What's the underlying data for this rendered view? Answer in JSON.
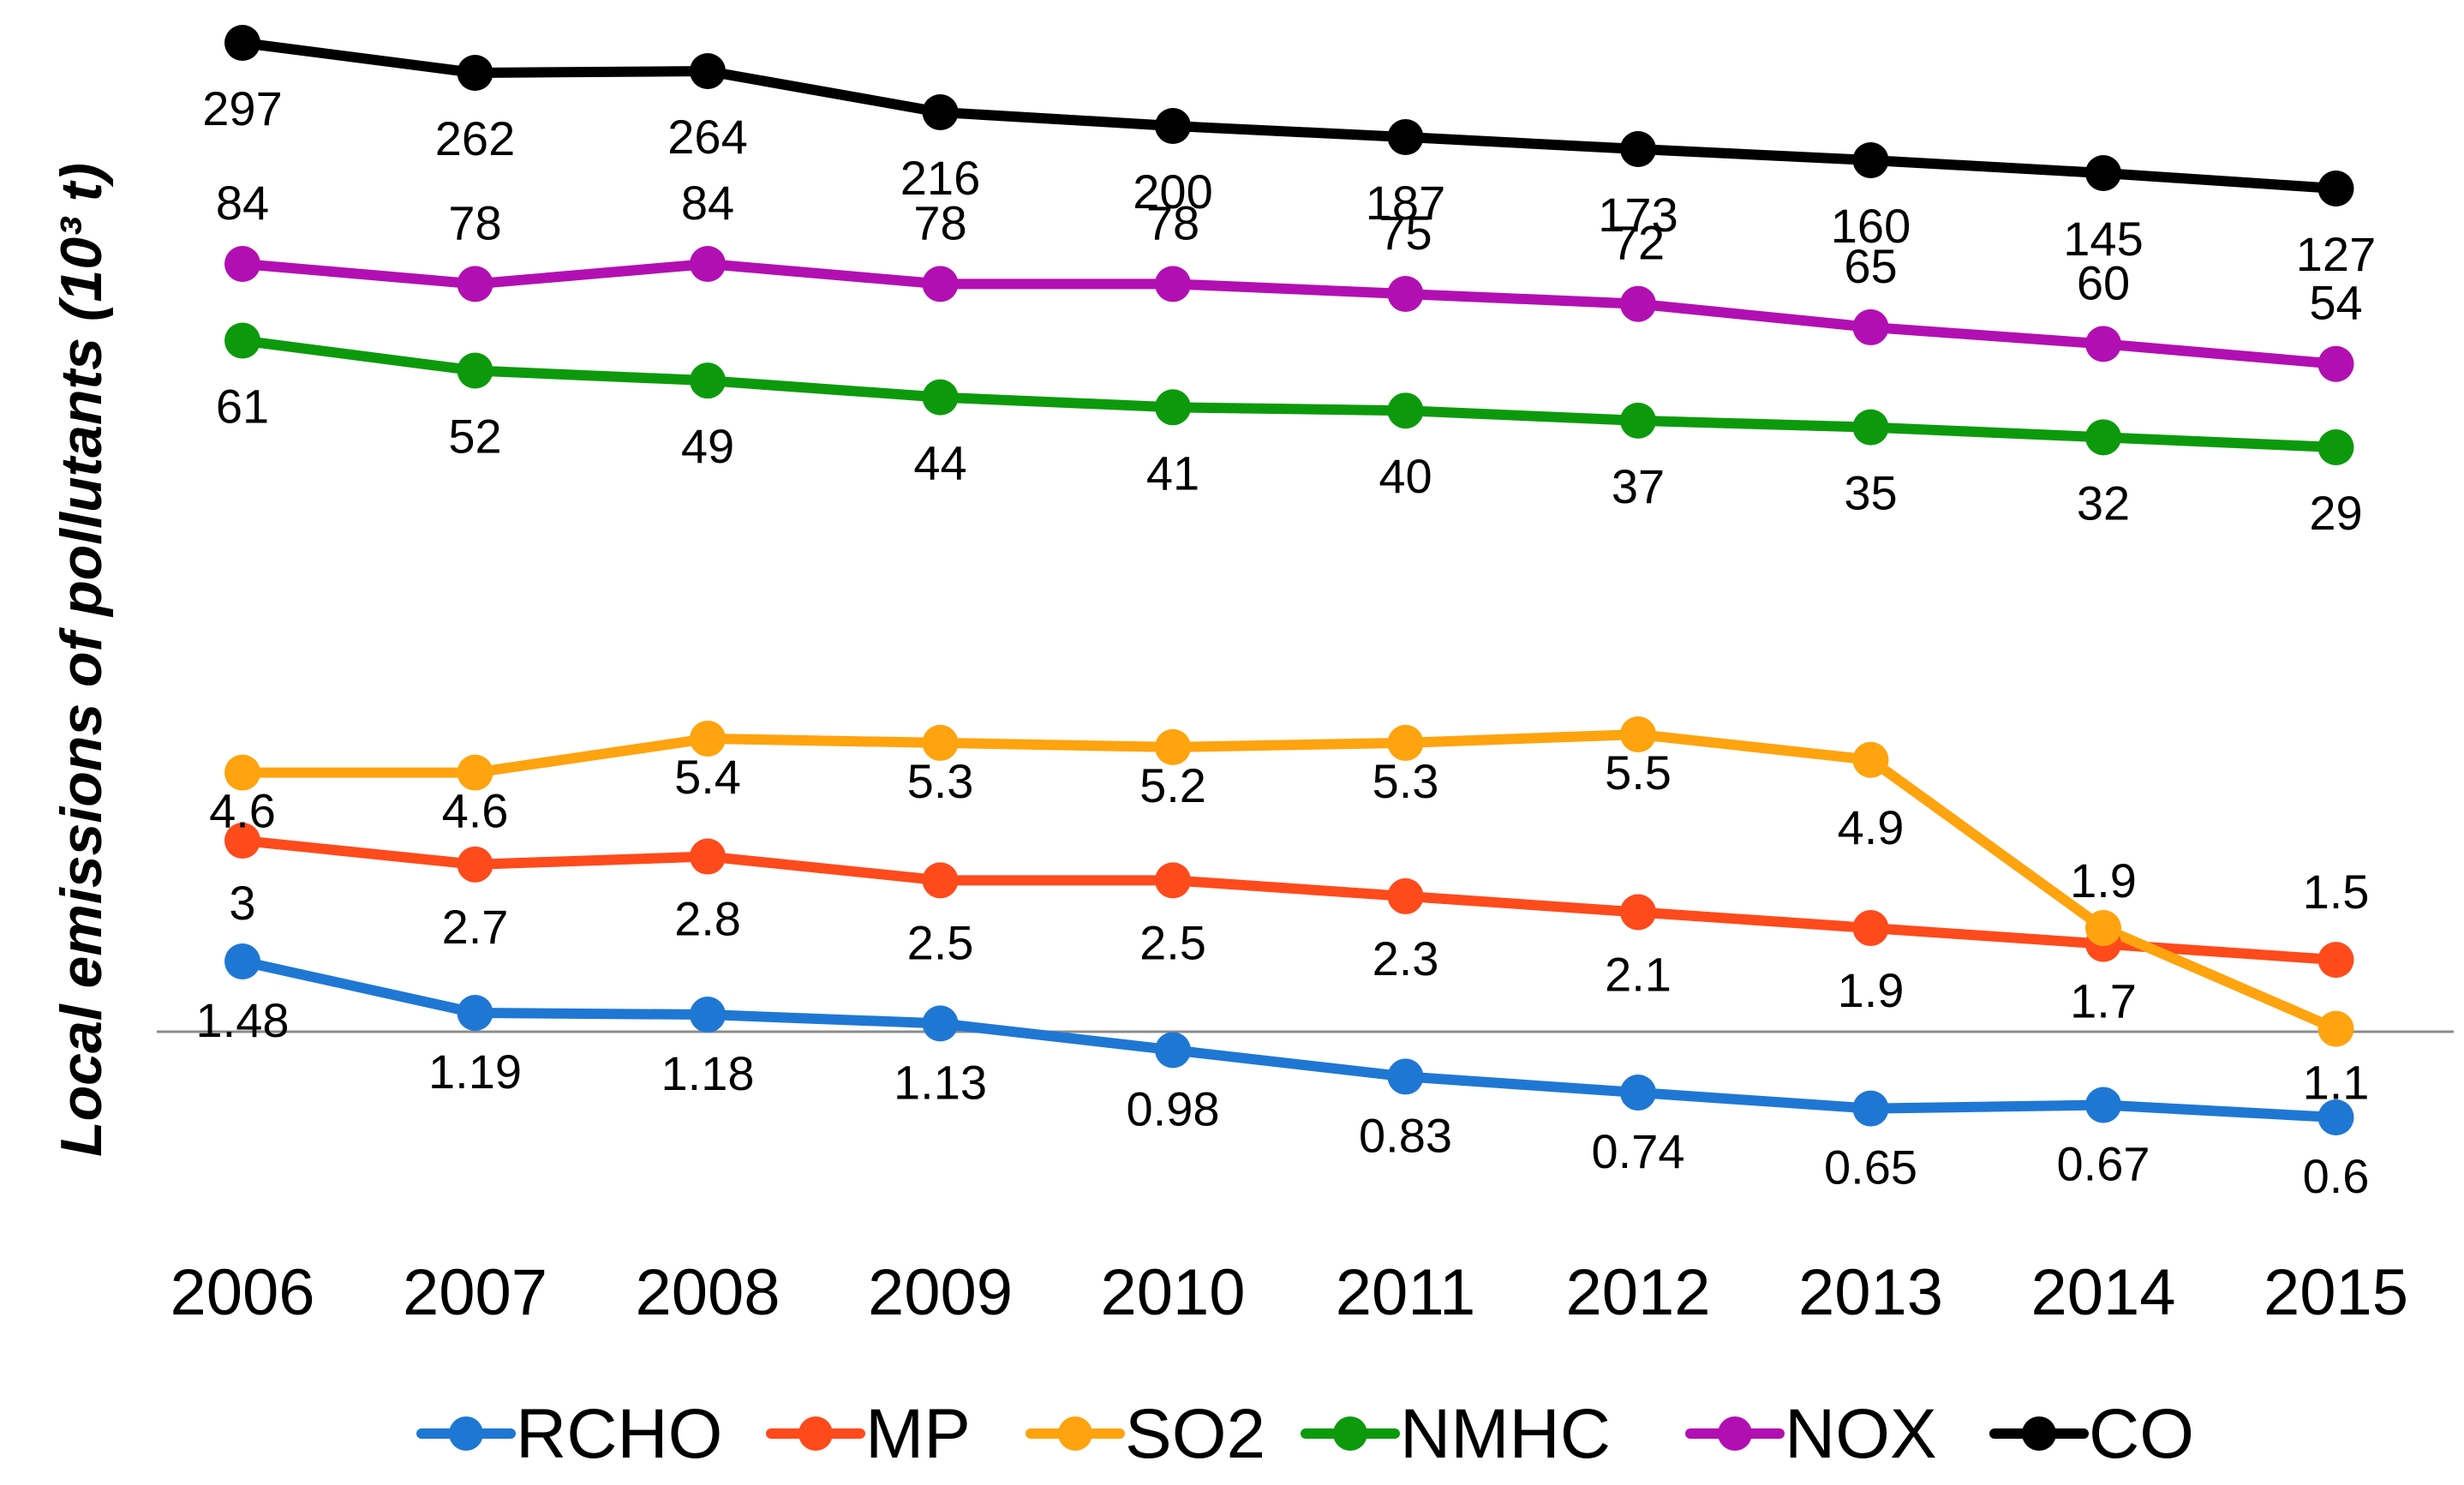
{
  "chart_data": {
    "type": "line",
    "title": "",
    "xlabel": "",
    "ylabel": "Local emissions of pollutants (10³ t)",
    "categories": [
      "2006",
      "2007",
      "2008",
      "2009",
      "2010",
      "2011",
      "2012",
      "2013",
      "2014",
      "2015"
    ],
    "grid": false,
    "legend_position": "bottom",
    "series": [
      {
        "name": "RCHO",
        "color": "#1f77d4",
        "values": [
          1.48,
          1.19,
          1.18,
          1.13,
          0.98,
          0.83,
          0.74,
          0.65,
          0.67,
          0.6
        ]
      },
      {
        "name": "MP",
        "color": "#ff4a1c",
        "values": [
          3,
          2.7,
          2.8,
          2.5,
          2.5,
          2.3,
          2.1,
          1.9,
          1.7,
          1.5
        ]
      },
      {
        "name": "SO2",
        "color": "#ffa30f",
        "values": [
          4.6,
          4.6,
          5.4,
          5.3,
          5.2,
          5.3,
          5.5,
          4.9,
          1.9,
          1.1
        ]
      },
      {
        "name": "NMHC",
        "color": "#0c9a0c",
        "values": [
          61,
          52,
          49,
          44,
          41,
          40,
          37,
          35,
          32,
          29
        ]
      },
      {
        "name": "NOX",
        "color": "#b20fb2",
        "values": [
          84,
          78,
          84,
          78,
          78,
          75,
          72,
          65,
          60,
          54
        ]
      },
      {
        "name": "CO",
        "color": "#000000",
        "values": [
          297,
          262,
          264,
          216,
          200,
          187,
          173,
          160,
          145,
          127
        ]
      }
    ]
  }
}
